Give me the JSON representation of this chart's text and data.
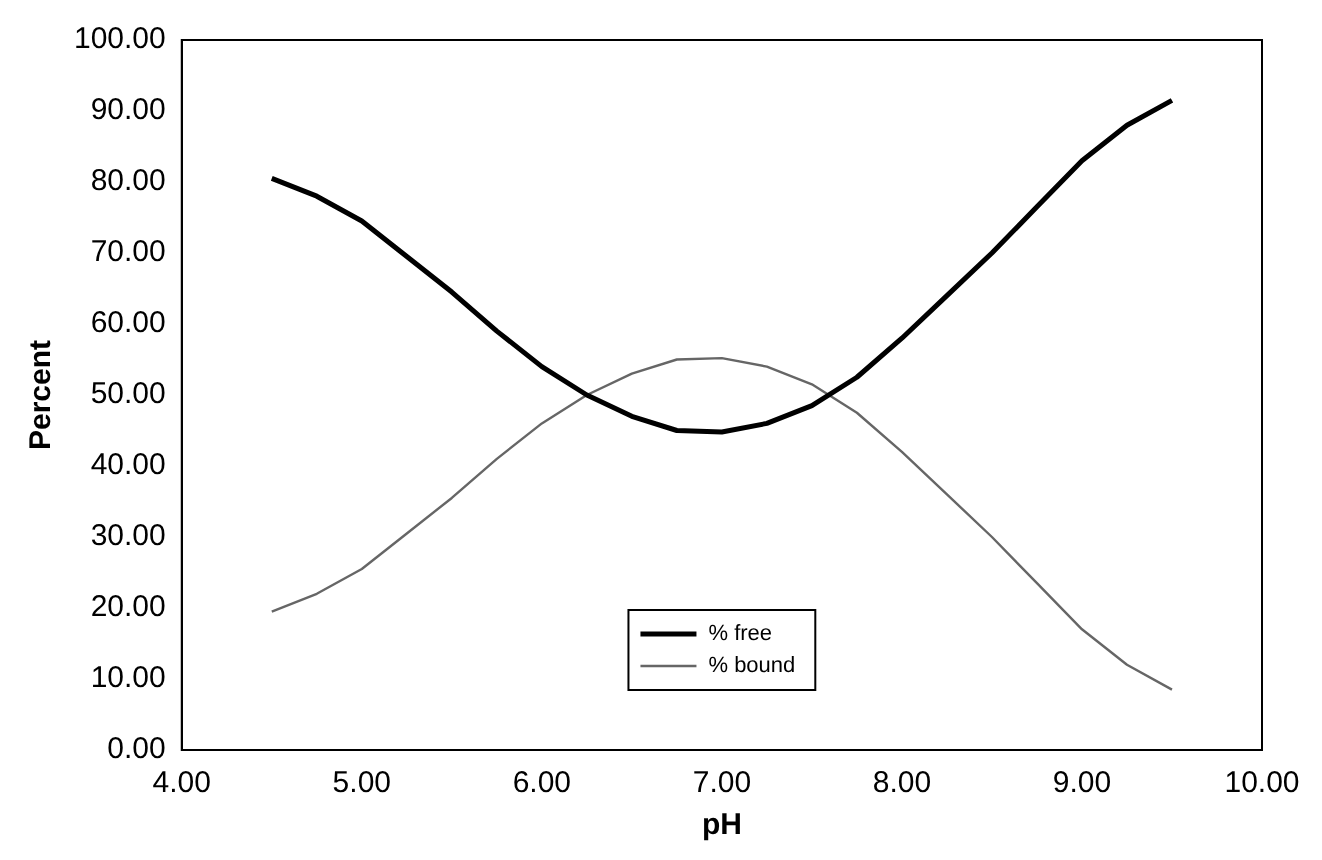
{
  "chart_data": {
    "type": "line",
    "xlabel": "pH",
    "ylabel": "Percent",
    "x": [
      4.5,
      4.75,
      5,
      5.25,
      5.5,
      5.75,
      6,
      6.25,
      6.5,
      6.75,
      7,
      7.25,
      7.5,
      7.75,
      8,
      8.25,
      8.5,
      8.75,
      9,
      9.25,
      9.5
    ],
    "series": [
      {
        "name": "% free",
        "color": "#000000",
        "values": [
          80.5,
          78,
          74.5,
          69.5,
          64.5,
          59,
          54,
          50,
          47,
          45,
          44.8,
          46,
          48.5,
          52.5,
          58,
          64,
          70,
          76.5,
          83,
          88,
          91.5
        ]
      },
      {
        "name": "% bound",
        "color": "#666666",
        "values": [
          19.5,
          22,
          25.5,
          30.5,
          35.5,
          41,
          46,
          50,
          53,
          55,
          55.2,
          54,
          51.5,
          47.5,
          42,
          36,
          30,
          23.5,
          17,
          12,
          8.5
        ]
      }
    ],
    "xlim": [
      4,
      10
    ],
    "xticks": [
      {
        "value": 4,
        "label": "4.00"
      },
      {
        "value": 5,
        "label": "5.00"
      },
      {
        "value": 6,
        "label": "6.00"
      },
      {
        "value": 7,
        "label": "7.00"
      },
      {
        "value": 8,
        "label": "8.00"
      },
      {
        "value": 9,
        "label": "9.00"
      },
      {
        "value": 10,
        "label": "10.00"
      }
    ],
    "ylim": [
      0,
      100
    ],
    "yticks": [
      {
        "value": 0,
        "label": "0.00"
      },
      {
        "value": 10,
        "label": "10.00"
      },
      {
        "value": 20,
        "label": "20.00"
      },
      {
        "value": 30,
        "label": "30.00"
      },
      {
        "value": 40,
        "label": "40.00"
      },
      {
        "value": 50,
        "label": "50.00"
      },
      {
        "value": 60,
        "label": "60.00"
      },
      {
        "value": 70,
        "label": "70.00"
      },
      {
        "value": 80,
        "label": "80.00"
      },
      {
        "value": 90,
        "label": "90.00"
      },
      {
        "value": 100,
        "label": "100.00"
      }
    ],
    "grid": false,
    "legend": "bottom",
    "marker": "none",
    "line_style": "solid"
  }
}
